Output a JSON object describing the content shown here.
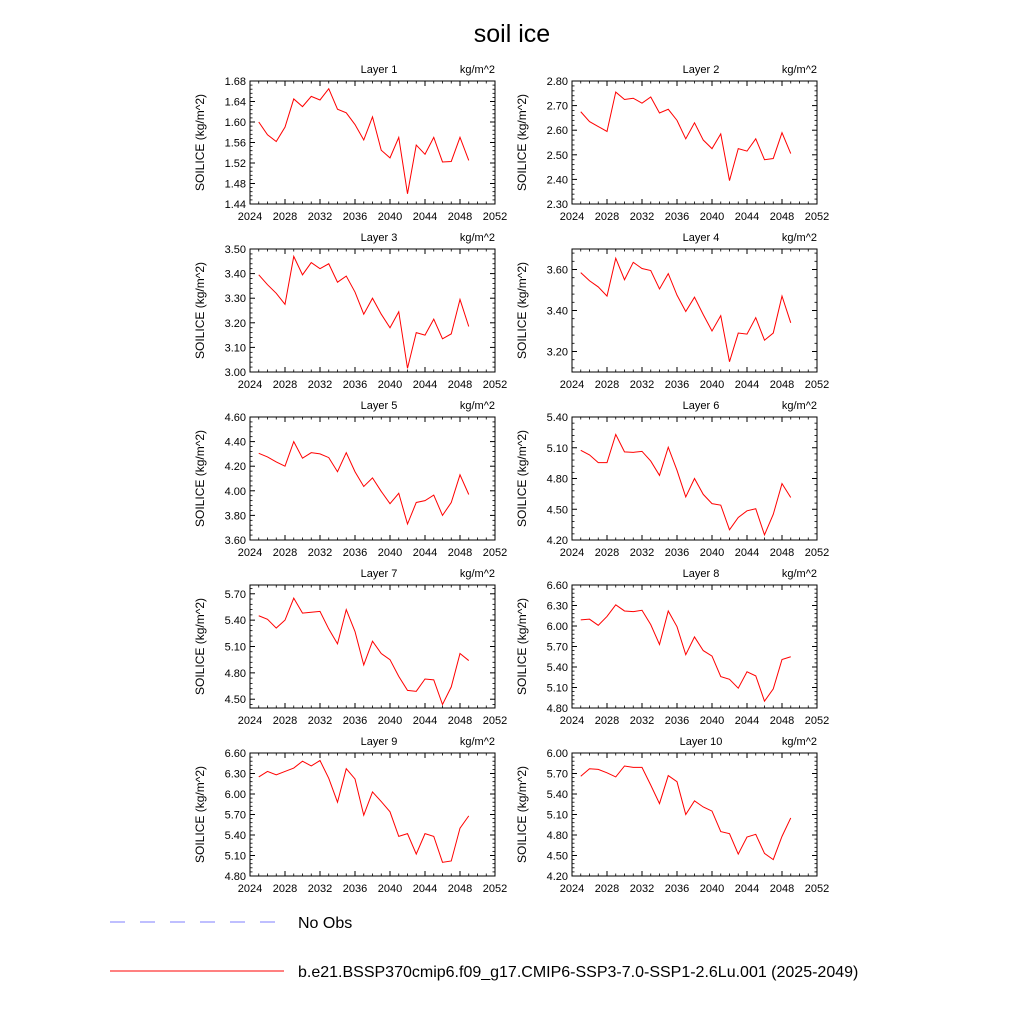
{
  "title": "soil ice",
  "legend": [
    {
      "label": "No Obs",
      "color": "#7f7fff",
      "style": "dashed"
    },
    {
      "label": "b.e21.BSSP370cmip6.f09_g17.CMIP6-SSP3-7.0-SSP1-2.6Lu.001 (2025-2049)",
      "color": "#ff0000",
      "style": "solid"
    }
  ],
  "chart_data": [
    {
      "type": "line",
      "title": "Layer 1",
      "unit_label": "kg/m^2",
      "ylabel": "SOILICE  (kg/m^2)",
      "xlim": [
        2024,
        2052
      ],
      "xticks": [
        2024,
        2028,
        2032,
        2036,
        2040,
        2044,
        2048,
        2052
      ],
      "ylim": [
        1.44,
        1.68
      ],
      "yticks": [
        "1.44",
        "1.48",
        "1.52",
        "1.56",
        "1.60",
        "1.64",
        "1.68"
      ],
      "x": [
        2025,
        2026,
        2027,
        2028,
        2029,
        2030,
        2031,
        2032,
        2033,
        2034,
        2035,
        2036,
        2037,
        2038,
        2039,
        2040,
        2041,
        2042,
        2043,
        2044,
        2045,
        2046,
        2047,
        2048,
        2049
      ],
      "series": [
        {
          "name": "b.e21.BSSP370cmip6.f09_g17.CMIP6-SSP3-7.0-SSP1-2.6Lu.001 (2025-2049)",
          "color": "#ff0000",
          "values": [
            1.6,
            1.575,
            1.562,
            1.59,
            1.645,
            1.63,
            1.65,
            1.643,
            1.665,
            1.625,
            1.618,
            1.595,
            1.565,
            1.61,
            1.545,
            1.53,
            1.57,
            1.46,
            1.555,
            1.537,
            1.57,
            1.522,
            1.523,
            1.57,
            1.525
          ]
        }
      ]
    },
    {
      "type": "line",
      "title": "Layer 2",
      "unit_label": "kg/m^2",
      "ylabel": "SOILICE  (kg/m^2)",
      "xlim": [
        2024,
        2052
      ],
      "xticks": [
        2024,
        2028,
        2032,
        2036,
        2040,
        2044,
        2048,
        2052
      ],
      "ylim": [
        2.3,
        2.8
      ],
      "yticks": [
        "2.30",
        "2.40",
        "2.50",
        "2.60",
        "2.70",
        "2.80"
      ],
      "x": [
        2025,
        2026,
        2027,
        2028,
        2029,
        2030,
        2031,
        2032,
        2033,
        2034,
        2035,
        2036,
        2037,
        2038,
        2039,
        2040,
        2041,
        2042,
        2043,
        2044,
        2045,
        2046,
        2047,
        2048,
        2049
      ],
      "series": [
        {
          "name": "b.e21.BSSP370cmip6.f09_g17.CMIP6-SSP3-7.0-SSP1-2.6Lu.001 (2025-2049)",
          "color": "#ff0000",
          "values": [
            2.675,
            2.635,
            2.615,
            2.595,
            2.755,
            2.725,
            2.73,
            2.71,
            2.735,
            2.67,
            2.685,
            2.64,
            2.565,
            2.63,
            2.56,
            2.525,
            2.585,
            2.395,
            2.525,
            2.515,
            2.565,
            2.48,
            2.485,
            2.59,
            2.505
          ]
        }
      ]
    },
    {
      "type": "line",
      "title": "Layer 3",
      "unit_label": "kg/m^2",
      "ylabel": "SOILICE  (kg/m^2)",
      "xlim": [
        2024,
        2052
      ],
      "xticks": [
        2024,
        2028,
        2032,
        2036,
        2040,
        2044,
        2048,
        2052
      ],
      "ylim": [
        3.0,
        3.5
      ],
      "yticks": [
        "3.00",
        "3.10",
        "3.20",
        "3.30",
        "3.40",
        "3.50"
      ],
      "x": [
        2025,
        2026,
        2027,
        2028,
        2029,
        2030,
        2031,
        2032,
        2033,
        2034,
        2035,
        2036,
        2037,
        2038,
        2039,
        2040,
        2041,
        2042,
        2043,
        2044,
        2045,
        2046,
        2047,
        2048,
        2049
      ],
      "series": [
        {
          "name": "b.e21.BSSP370cmip6.f09_g17.CMIP6-SSP3-7.0-SSP1-2.6Lu.001 (2025-2049)",
          "color": "#ff0000",
          "values": [
            3.395,
            3.355,
            3.32,
            3.275,
            3.47,
            3.395,
            3.445,
            3.42,
            3.44,
            3.365,
            3.39,
            3.325,
            3.235,
            3.3,
            3.235,
            3.18,
            3.245,
            3.015,
            3.16,
            3.15,
            3.215,
            3.135,
            3.155,
            3.295,
            3.185
          ]
        }
      ]
    },
    {
      "type": "line",
      "title": "Layer 4",
      "unit_label": "kg/m^2",
      "ylabel": "SOILICE  (kg/m^2)",
      "xlim": [
        2024,
        2052
      ],
      "xticks": [
        2024,
        2028,
        2032,
        2036,
        2040,
        2044,
        2048,
        2052
      ],
      "ylim": [
        3.1,
        3.7
      ],
      "yticks": [
        "3.20",
        "3.40",
        "3.60"
      ],
      "x": [
        2025,
        2026,
        2027,
        2028,
        2029,
        2030,
        2031,
        2032,
        2033,
        2034,
        2035,
        2036,
        2037,
        2038,
        2039,
        2040,
        2041,
        2042,
        2043,
        2044,
        2045,
        2046,
        2047,
        2048,
        2049
      ],
      "series": [
        {
          "name": "b.e21.BSSP370cmip6.f09_g17.CMIP6-SSP3-7.0-SSP1-2.6Lu.001 (2025-2049)",
          "color": "#ff0000",
          "values": [
            3.585,
            3.545,
            3.515,
            3.47,
            3.655,
            3.55,
            3.635,
            3.605,
            3.595,
            3.505,
            3.58,
            3.475,
            3.395,
            3.465,
            3.38,
            3.3,
            3.375,
            3.15,
            3.29,
            3.285,
            3.365,
            3.255,
            3.29,
            3.47,
            3.34
          ]
        }
      ]
    },
    {
      "type": "line",
      "title": "Layer 5",
      "unit_label": "kg/m^2",
      "ylabel": "SOILICE  (kg/m^2)",
      "xlim": [
        2024,
        2052
      ],
      "xticks": [
        2024,
        2028,
        2032,
        2036,
        2040,
        2044,
        2048,
        2052
      ],
      "ylim": [
        3.6,
        4.6
      ],
      "yticks": [
        "3.60",
        "3.80",
        "4.00",
        "4.20",
        "4.40",
        "4.60"
      ],
      "x": [
        2025,
        2026,
        2027,
        2028,
        2029,
        2030,
        2031,
        2032,
        2033,
        2034,
        2035,
        2036,
        2037,
        2038,
        2039,
        2040,
        2041,
        2042,
        2043,
        2044,
        2045,
        2046,
        2047,
        2048,
        2049
      ],
      "series": [
        {
          "name": "b.e21.BSSP370cmip6.f09_g17.CMIP6-SSP3-7.0-SSP1-2.6Lu.001 (2025-2049)",
          "color": "#ff0000",
          "values": [
            4.305,
            4.275,
            4.235,
            4.2,
            4.4,
            4.265,
            4.31,
            4.3,
            4.27,
            4.155,
            4.31,
            4.155,
            4.035,
            4.105,
            3.995,
            3.895,
            3.98,
            3.73,
            3.905,
            3.92,
            3.965,
            3.8,
            3.905,
            4.13,
            3.97
          ]
        }
      ]
    },
    {
      "type": "line",
      "title": "Layer 6",
      "unit_label": "kg/m^2",
      "ylabel": "SOILICE  (kg/m^2)",
      "xlim": [
        2024,
        2052
      ],
      "xticks": [
        2024,
        2028,
        2032,
        2036,
        2040,
        2044,
        2048,
        2052
      ],
      "ylim": [
        4.2,
        5.4
      ],
      "yticks": [
        "4.20",
        "4.50",
        "4.80",
        "5.10",
        "5.40"
      ],
      "x": [
        2025,
        2026,
        2027,
        2028,
        2029,
        2030,
        2031,
        2032,
        2033,
        2034,
        2035,
        2036,
        2037,
        2038,
        2039,
        2040,
        2041,
        2042,
        2043,
        2044,
        2045,
        2046,
        2047,
        2048,
        2049
      ],
      "series": [
        {
          "name": "b.e21.BSSP370cmip6.f09_g17.CMIP6-SSP3-7.0-SSP1-2.6Lu.001 (2025-2049)",
          "color": "#ff0000",
          "values": [
            5.075,
            5.03,
            4.955,
            4.955,
            5.23,
            5.06,
            5.055,
            5.065,
            4.97,
            4.83,
            5.105,
            4.88,
            4.62,
            4.8,
            4.645,
            4.555,
            4.54,
            4.3,
            4.42,
            4.485,
            4.505,
            4.25,
            4.45,
            4.75,
            4.615
          ]
        }
      ]
    },
    {
      "type": "line",
      "title": "Layer 7",
      "unit_label": "kg/m^2",
      "ylabel": "SOILICE  (kg/m^2)",
      "xlim": [
        2024,
        2052
      ],
      "xticks": [
        2024,
        2028,
        2032,
        2036,
        2040,
        2044,
        2048,
        2052
      ],
      "ylim": [
        4.4,
        5.8
      ],
      "yticks": [
        "4.50",
        "4.80",
        "5.10",
        "5.40",
        "5.70"
      ],
      "x": [
        2025,
        2026,
        2027,
        2028,
        2029,
        2030,
        2031,
        2032,
        2033,
        2034,
        2035,
        2036,
        2037,
        2038,
        2039,
        2040,
        2041,
        2042,
        2043,
        2044,
        2045,
        2046,
        2047,
        2048,
        2049
      ],
      "series": [
        {
          "name": "b.e21.BSSP370cmip6.f09_g17.CMIP6-SSP3-7.0-SSP1-2.6Lu.001 (2025-2049)",
          "color": "#ff0000",
          "values": [
            5.45,
            5.41,
            5.31,
            5.4,
            5.65,
            5.48,
            5.49,
            5.5,
            5.3,
            5.13,
            5.52,
            5.27,
            4.89,
            5.16,
            5.02,
            4.95,
            4.76,
            4.6,
            4.59,
            4.73,
            4.72,
            4.44,
            4.64,
            5.02,
            4.94
          ]
        }
      ]
    },
    {
      "type": "line",
      "title": "Layer 8",
      "unit_label": "kg/m^2",
      "ylabel": "SOILICE  (kg/m^2)",
      "xlim": [
        2024,
        2052
      ],
      "xticks": [
        2024,
        2028,
        2032,
        2036,
        2040,
        2044,
        2048,
        2052
      ],
      "ylim": [
        4.8,
        6.6
      ],
      "yticks": [
        "4.80",
        "5.10",
        "5.40",
        "5.70",
        "6.00",
        "6.30",
        "6.60"
      ],
      "x": [
        2025,
        2026,
        2027,
        2028,
        2029,
        2030,
        2031,
        2032,
        2033,
        2034,
        2035,
        2036,
        2037,
        2038,
        2039,
        2040,
        2041,
        2042,
        2043,
        2044,
        2045,
        2046,
        2047,
        2048,
        2049
      ],
      "series": [
        {
          "name": "b.e21.BSSP370cmip6.f09_g17.CMIP6-SSP3-7.0-SSP1-2.6Lu.001 (2025-2049)",
          "color": "#ff0000",
          "values": [
            6.09,
            6.1,
            6.01,
            6.14,
            6.31,
            6.22,
            6.21,
            6.23,
            6.02,
            5.73,
            6.22,
            5.99,
            5.58,
            5.84,
            5.64,
            5.56,
            5.26,
            5.22,
            5.09,
            5.33,
            5.27,
            4.9,
            5.08,
            5.51,
            5.55
          ]
        }
      ]
    },
    {
      "type": "line",
      "title": "Layer 9",
      "unit_label": "kg/m^2",
      "ylabel": "SOILICE  (kg/m^2)",
      "xlim": [
        2024,
        2052
      ],
      "xticks": [
        2024,
        2028,
        2032,
        2036,
        2040,
        2044,
        2048,
        2052
      ],
      "ylim": [
        4.8,
        6.6
      ],
      "yticks": [
        "4.80",
        "5.10",
        "5.40",
        "5.70",
        "6.00",
        "6.30",
        "6.60"
      ],
      "x": [
        2025,
        2026,
        2027,
        2028,
        2029,
        2030,
        2031,
        2032,
        2033,
        2034,
        2035,
        2036,
        2037,
        2038,
        2039,
        2040,
        2041,
        2042,
        2043,
        2044,
        2045,
        2046,
        2047,
        2048,
        2049
      ],
      "series": [
        {
          "name": "b.e21.BSSP370cmip6.f09_g17.CMIP6-SSP3-7.0-SSP1-2.6Lu.001 (2025-2049)",
          "color": "#ff0000",
          "values": [
            6.25,
            6.33,
            6.28,
            6.33,
            6.38,
            6.48,
            6.41,
            6.49,
            6.23,
            5.88,
            6.37,
            6.22,
            5.69,
            6.03,
            5.89,
            5.74,
            5.38,
            5.42,
            5.12,
            5.42,
            5.38,
            5.0,
            5.02,
            5.5,
            5.68
          ]
        }
      ]
    },
    {
      "type": "line",
      "title": "Layer 10",
      "unit_label": "kg/m^2",
      "ylabel": "SOILICE  (kg/m^2)",
      "xlim": [
        2024,
        2052
      ],
      "xticks": [
        2024,
        2028,
        2032,
        2036,
        2040,
        2044,
        2048,
        2052
      ],
      "ylim": [
        4.2,
        6.0
      ],
      "yticks": [
        "4.20",
        "4.50",
        "4.80",
        "5.10",
        "5.40",
        "5.70",
        "6.00"
      ],
      "x": [
        2025,
        2026,
        2027,
        2028,
        2029,
        2030,
        2031,
        2032,
        2033,
        2034,
        2035,
        2036,
        2037,
        2038,
        2039,
        2040,
        2041,
        2042,
        2043,
        2044,
        2045,
        2046,
        2047,
        2048,
        2049
      ],
      "series": [
        {
          "name": "b.e21.BSSP370cmip6.f09_g17.CMIP6-SSP3-7.0-SSP1-2.6Lu.001 (2025-2049)",
          "color": "#ff0000",
          "values": [
            5.66,
            5.77,
            5.76,
            5.71,
            5.65,
            5.81,
            5.79,
            5.79,
            5.53,
            5.26,
            5.67,
            5.58,
            5.1,
            5.3,
            5.21,
            5.15,
            4.85,
            4.82,
            4.52,
            4.77,
            4.81,
            4.53,
            4.44,
            4.78,
            5.05
          ]
        }
      ]
    }
  ]
}
